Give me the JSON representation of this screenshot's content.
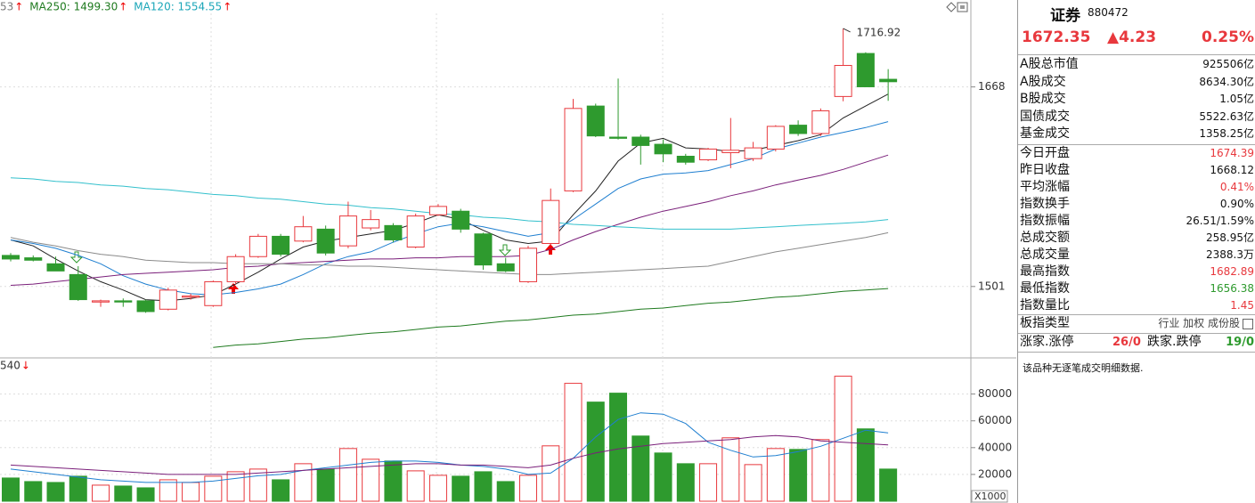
{
  "chart_data": [
    {
      "type": "candlestick",
      "header": [
        {
          "label": "53",
          "arrow": "↑",
          "color": "#7a7a7a"
        },
        {
          "label": "MA250: 1499.30",
          "arrow": "↑",
          "color": "#1e7a1e"
        },
        {
          "label": "MA120: 1554.55",
          "arrow": "↑",
          "color": "#1aa6b8"
        }
      ],
      "open": [
        1527,
        1525,
        1520,
        1511,
        1488,
        1489,
        1489,
        1482,
        1492,
        1485,
        1505,
        1526,
        1543,
        1539,
        1549,
        1535,
        1550,
        1552,
        1534,
        1561,
        1564,
        1545,
        1520,
        1505,
        1537,
        1581,
        1652,
        1626,
        1626,
        1620,
        1610,
        1607,
        1613,
        1608,
        1616,
        1636,
        1629,
        1660,
        1696,
        1674.39
      ],
      "high": [
        1529,
        1527,
        1526,
        1518,
        1490,
        1491,
        1490,
        1500,
        1495,
        1506,
        1528,
        1545,
        1545,
        1560,
        1552,
        1572,
        1565,
        1554,
        1562,
        1570,
        1566,
        1546,
        1525,
        1535,
        1583,
        1658,
        1654,
        1675,
        1628,
        1624,
        1612,
        1617,
        1642,
        1622,
        1636,
        1640,
        1650,
        1716.92,
        1697,
        1682.89
      ],
      "low": [
        1522,
        1522,
        1514,
        1489,
        1484,
        1484,
        1479,
        1481,
        1490,
        1484,
        1503,
        1525,
        1526,
        1538,
        1527,
        1533,
        1548,
        1538,
        1533,
        1560,
        1546,
        1515,
        1513,
        1504,
        1535,
        1580,
        1626,
        1624,
        1603,
        1605,
        1603,
        1606,
        1600,
        1606,
        1614,
        1627,
        1627,
        1656,
        1668.12,
        1656.38
      ],
      "close": [
        1524,
        1523,
        1514,
        1490,
        1489,
        1488,
        1480,
        1498,
        1493,
        1505,
        1526,
        1543,
        1528,
        1551,
        1529,
        1560,
        1557,
        1540,
        1560,
        1568,
        1549,
        1519,
        1514,
        1533,
        1573,
        1650,
        1627,
        1625,
        1619,
        1612,
        1605,
        1616,
        1615,
        1617,
        1635,
        1629,
        1648,
        1686,
        1668.12,
        1672.35
      ],
      "up_color": "#e8383d",
      "down_color": "#2e9a2e",
      "lines": [
        {
          "color": "#222222",
          "values": [
            1540,
            1535,
            1524,
            1514,
            1505,
            1498,
            1490,
            1489,
            1491,
            1494,
            1503,
            1513,
            1524,
            1534,
            1539,
            1542,
            1545,
            1548,
            1554,
            1561,
            1557,
            1548,
            1540,
            1537,
            1539,
            1561,
            1581,
            1606,
            1621,
            1625,
            1617,
            1616,
            1614,
            1615,
            1619,
            1623,
            1628,
            1642,
            1652,
            1662
          ]
        },
        {
          "color": "#1f7fd0",
          "values": [
            1540,
            1537,
            1533,
            1527,
            1520,
            1510,
            1503,
            1498,
            1495,
            1494,
            1496,
            1499,
            1503,
            1511,
            1520,
            1526,
            1530,
            1538,
            1545,
            1551,
            1554,
            1551,
            1547,
            1543,
            1546,
            1557,
            1570,
            1583,
            1591,
            1595,
            1596,
            1598,
            1603,
            1608,
            1616,
            1621,
            1626,
            1630,
            1634,
            1639
          ]
        },
        {
          "color": "#7a1f7a",
          "values": [
            1502,
            1503,
            1505,
            1507,
            1509,
            1511,
            1512,
            1513,
            1514,
            1515,
            1517,
            1518,
            1520,
            1521,
            1522,
            1523,
            1524,
            1524,
            1525,
            1525,
            1526,
            1526,
            1526,
            1527,
            1532,
            1540,
            1547,
            1553,
            1559,
            1564,
            1568,
            1572,
            1577,
            1581,
            1586,
            1590,
            1594,
            1599,
            1605,
            1611
          ]
        },
        {
          "color": "#8a8a8a",
          "values": [
            1542,
            1538,
            1535,
            1531,
            1528,
            1526,
            1523,
            1522,
            1521,
            1521,
            1520,
            1520,
            1520,
            1519,
            1519,
            1518,
            1518,
            1517,
            1516,
            1515,
            1514,
            1513,
            1512,
            1511,
            1511,
            1512,
            1513,
            1514,
            1515,
            1516,
            1517,
            1518,
            1522,
            1526,
            1530,
            1533,
            1536,
            1539,
            1542,
            1546
          ]
        },
        {
          "color": "#33c0cc",
          "values": [
            1592,
            1591,
            1589,
            1588,
            1586,
            1585,
            1583,
            1582,
            1580,
            1578,
            1577,
            1575,
            1574,
            1572,
            1570,
            1569,
            1567,
            1566,
            1564,
            1562,
            1561,
            1559,
            1558,
            1556,
            1555,
            1553,
            1552,
            1551,
            1550,
            1549,
            1549,
            1549,
            1549,
            1550,
            1551,
            1552,
            1553,
            1554,
            1555,
            1557
          ]
        },
        {
          "color": "#1e7a1e",
          "values": [
            null,
            null,
            null,
            null,
            null,
            null,
            null,
            null,
            null,
            1450,
            1452,
            1453,
            1455,
            1457,
            1458,
            1460,
            1462,
            1463,
            1465,
            1467,
            1468,
            1470,
            1472,
            1473,
            1475,
            1477,
            1478,
            1480,
            1482,
            1483,
            1485,
            1487,
            1488,
            1490,
            1492,
            1493,
            1495,
            1497,
            1498,
            1499.3
          ]
        }
      ],
      "ylim": [
        1442,
        1740
      ],
      "yticks": [
        1501,
        1668
      ]
    },
    {
      "type": "bar",
      "header": {
        "label": "540",
        "arrow": "↓"
      },
      "unit_label": "X1000",
      "values": [
        17333,
        14667,
        14000,
        18667,
        12000,
        11333,
        10000,
        16000,
        14000,
        18667,
        22000,
        24000,
        16000,
        28000,
        24000,
        39333,
        31333,
        30000,
        22667,
        19333,
        18667,
        22000,
        14667,
        19333,
        41333,
        88000,
        74000,
        80667,
        48667,
        36000,
        28000,
        28000,
        47333,
        27333,
        39333,
        38667,
        46000,
        93333,
        54000,
        24000
      ],
      "lines": [
        {
          "color": "#1f7fd0",
          "values": [
            24000,
            22000,
            20000,
            18000,
            16000,
            15000,
            14000,
            14000,
            14000,
            15000,
            17000,
            19000,
            20000,
            23000,
            25000,
            27000,
            29000,
            30000,
            30000,
            29000,
            27000,
            26000,
            24000,
            20000,
            21000,
            32000,
            48000,
            61000,
            66000,
            65000,
            58000,
            44000,
            38000,
            33000,
            34000,
            37000,
            41000,
            47000,
            53000,
            51000
          ]
        },
        {
          "color": "#7a1f7a",
          "values": [
            27000,
            26000,
            25000,
            24000,
            23000,
            22000,
            21000,
            20000,
            20000,
            20000,
            20000,
            21000,
            22000,
            23000,
            24000,
            25000,
            26000,
            27000,
            28000,
            28000,
            27000,
            27000,
            26000,
            25000,
            27000,
            32000,
            36000,
            39000,
            41000,
            43000,
            44000,
            45000,
            46000,
            48000,
            49000,
            48000,
            45000,
            44000,
            43000,
            42000
          ]
        }
      ],
      "ylim": [
        0,
        105000
      ],
      "yticks": [
        20000,
        40000,
        60000,
        80000
      ]
    }
  ],
  "panel": {
    "title": "证券",
    "code": "880472",
    "price": "1672.35",
    "change": "▲4.23",
    "change_pct": "0.25%",
    "stats": [
      {
        "label": "A股总市值",
        "value": "925506亿",
        "color": "#111111"
      },
      {
        "label": "A股成交",
        "value": "8634.30亿",
        "color": "#111111"
      },
      {
        "label": "B股成交",
        "value": "1.05亿",
        "color": "#111111"
      },
      {
        "label": "国债成交",
        "value": "5522.63亿",
        "color": "#111111"
      },
      {
        "label": "基金成交",
        "value": "1358.25亿",
        "color": "#111111"
      }
    ],
    "stats2": [
      {
        "label": "今日开盘",
        "value": "1674.39",
        "color": "#e8383d"
      },
      {
        "label": "昨日收盘",
        "value": "1668.12",
        "color": "#111111"
      },
      {
        "label": "平均涨幅",
        "value": "0.41%",
        "color": "#e8383d"
      },
      {
        "label": "指数换手",
        "value": "0.90%",
        "color": "#111111"
      },
      {
        "label": "指数振幅",
        "value": "26.51/1.59%",
        "color": "#111111"
      },
      {
        "label": "总成交额",
        "value": "258.95亿",
        "color": "#111111"
      },
      {
        "label": "总成交量",
        "value": "2388.3万",
        "color": "#111111"
      },
      {
        "label": "最高指数",
        "value": "1682.89",
        "color": "#e8383d"
      },
      {
        "label": "最低指数",
        "value": "1656.38",
        "color": "#2e9a2e"
      },
      {
        "label": "指数量比",
        "value": "1.45",
        "color": "#e8383d"
      }
    ],
    "type_row": {
      "label": "板指类型",
      "value": "行业 加权 成份股"
    },
    "breadth": {
      "up_label": "涨家.涨停",
      "up": "26/0",
      "down_label": "跌家.跌停",
      "down": "19/0"
    },
    "note": "该品种无逐笔成交明细数据."
  }
}
